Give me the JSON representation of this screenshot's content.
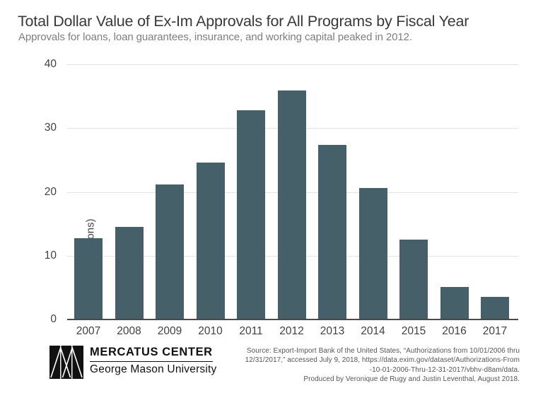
{
  "header": {
    "title": "Total Dollar Value of Ex-Im Approvals for All Programs by Fiscal Year",
    "subtitle": "Approvals for loans, loan guarantees, insurance, and working capital peaked in 2012."
  },
  "chart_data": {
    "type": "bar",
    "title": "Total Dollar Value of Ex-Im Approvals for All Programs by Fiscal Year",
    "subtitle": "Approvals for loans, loan guarantees, insurance, and working capital peaked in 2012.",
    "categories": [
      "2007",
      "2008",
      "2009",
      "2010",
      "2011",
      "2012",
      "2013",
      "2014",
      "2015",
      "2016",
      "2017"
    ],
    "values": [
      12.6,
      14.4,
      21.0,
      24.5,
      32.7,
      35.8,
      27.3,
      20.5,
      12.4,
      5.0,
      3.4
    ],
    "xlabel": "",
    "ylabel": "dollars (billions)",
    "yticks": [
      0,
      10,
      20,
      30,
      40
    ],
    "ylim": [
      0,
      40
    ],
    "grid": true,
    "legend": "none",
    "bar_color": "#46606a",
    "gridline_color": "#e3e3e3",
    "baseline_color": "#4a4a4a"
  },
  "footer": {
    "logo": {
      "icon": "mercatus-double-m-mark",
      "line1": "MERCATUS CENTER",
      "line2": "George Mason University"
    },
    "source_lines": [
      "Source: Export-Import Bank of the United States, “Authorizations from 10/01/2006 thru",
      "12/31/2017,” accessed July 9, 2018, https://data.exim.gov/dataset/Authorizations-From",
      "-10-01-2006-Thru-12-31-2017/vbhv-d8am/data.",
      "Produced by Veronique de Rugy and Justin Leventhal, August 2018."
    ]
  }
}
